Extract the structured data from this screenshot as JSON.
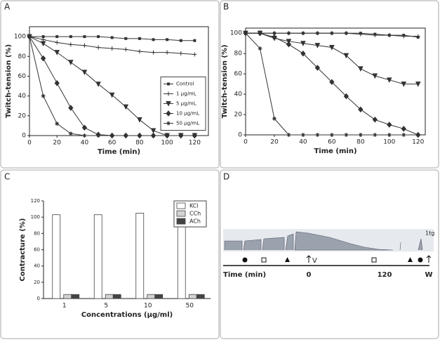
{
  "panels": [
    "A",
    "B",
    "C",
    "D"
  ],
  "chart_data": [
    {
      "type": "line",
      "xlabel": "Time (min)",
      "ylabel": "Twitch-tension (%)",
      "x": [
        0,
        10,
        20,
        30,
        40,
        50,
        60,
        70,
        80,
        90,
        100,
        110,
        120
      ],
      "xlim": [
        0,
        130
      ],
      "xticks": [
        0,
        20,
        40,
        60,
        80,
        100,
        120
      ],
      "ylim": [
        0,
        110
      ],
      "yticks": [
        0,
        20,
        40,
        60,
        80,
        100
      ],
      "legend": "center-right",
      "series": [
        {
          "name": "Control",
          "color": "#333333",
          "marker": "square",
          "values": [
            100,
            100,
            100,
            100,
            100,
            100,
            99,
            98,
            98,
            97,
            97,
            96,
            96
          ]
        },
        {
          "name": "1 μg/mL",
          "color": "#333333",
          "marker": "plus",
          "values": [
            100,
            97,
            94,
            92,
            91,
            89,
            88,
            87,
            85,
            84,
            84,
            83,
            82
          ]
        },
        {
          "name": "5 μg/mL",
          "color": "#333333",
          "marker": "triangle-down",
          "values": [
            100,
            93,
            84,
            74,
            64,
            52,
            41,
            29,
            16,
            5,
            0,
            0,
            0
          ]
        },
        {
          "name": "10 μg/mL",
          "color": "#333333",
          "marker": "diamond",
          "values": [
            100,
            78,
            53,
            28,
            8,
            1,
            0,
            0,
            0,
            0,
            0,
            0,
            0
          ]
        },
        {
          "name": "50 μg/mL",
          "color": "#333333",
          "marker": "star",
          "values": [
            100,
            40,
            12,
            2,
            0,
            0,
            0,
            0,
            0,
            0,
            0,
            0,
            0
          ]
        }
      ]
    },
    {
      "type": "line",
      "xlabel": "Time (min)",
      "ylabel": "Twitch-tension (%)",
      "x": [
        0,
        10,
        20,
        30,
        40,
        50,
        60,
        70,
        80,
        90,
        100,
        110,
        120
      ],
      "xlim": [
        0,
        125
      ],
      "xticks": [
        0,
        20,
        40,
        60,
        80,
        100,
        120
      ],
      "ylim": [
        0,
        105
      ],
      "yticks": [
        0,
        20,
        40,
        60,
        80,
        100
      ],
      "series": [
        {
          "color": "#333333",
          "marker": "square",
          "values": [
            100,
            100,
            100,
            100,
            100,
            100,
            100,
            100,
            100,
            99,
            98,
            98,
            96
          ]
        },
        {
          "color": "#333333",
          "marker": "plus",
          "values": [
            100,
            100,
            100,
            100,
            100,
            100,
            100,
            100,
            99,
            98,
            98,
            97,
            97
          ]
        },
        {
          "color": "#333333",
          "marker": "triangle-down",
          "values": [
            100,
            100,
            95,
            92,
            90,
            88,
            86,
            78,
            65,
            58,
            54,
            50,
            50
          ]
        },
        {
          "color": "#333333",
          "marker": "diamond",
          "values": [
            100,
            100,
            96,
            89,
            80,
            66,
            52,
            38,
            25,
            15,
            10,
            6,
            0
          ]
        },
        {
          "color": "#333333",
          "marker": "star",
          "values": [
            100,
            85,
            16,
            0,
            0,
            0,
            0,
            0,
            0,
            0,
            0,
            0,
            0
          ]
        }
      ]
    },
    {
      "type": "bar",
      "xlabel": "Concentrations (μg/ml)",
      "ylabel": "Contracture (%)",
      "categories": [
        "1",
        "5",
        "10",
        "50"
      ],
      "ylim": [
        0,
        120
      ],
      "yticks": [
        0,
        20,
        40,
        60,
        80,
        100,
        120
      ],
      "legend": "upper-right",
      "series": [
        {
          "name": "KCl",
          "color": "#ffffff",
          "values": [
            103,
            103,
            105,
            102
          ]
        },
        {
          "name": "CCh",
          "color": "#d4d4d4",
          "values": [
            5,
            5,
            5,
            5
          ]
        },
        {
          "name": "ACh",
          "color": "#444444",
          "values": [
            5,
            5,
            5,
            5
          ]
        }
      ]
    }
  ],
  "trace": {
    "scale": "1tg",
    "time_label": "Time (min)",
    "ticks": [
      "0",
      "120"
    ],
    "labels": [
      "V",
      "W"
    ]
  }
}
